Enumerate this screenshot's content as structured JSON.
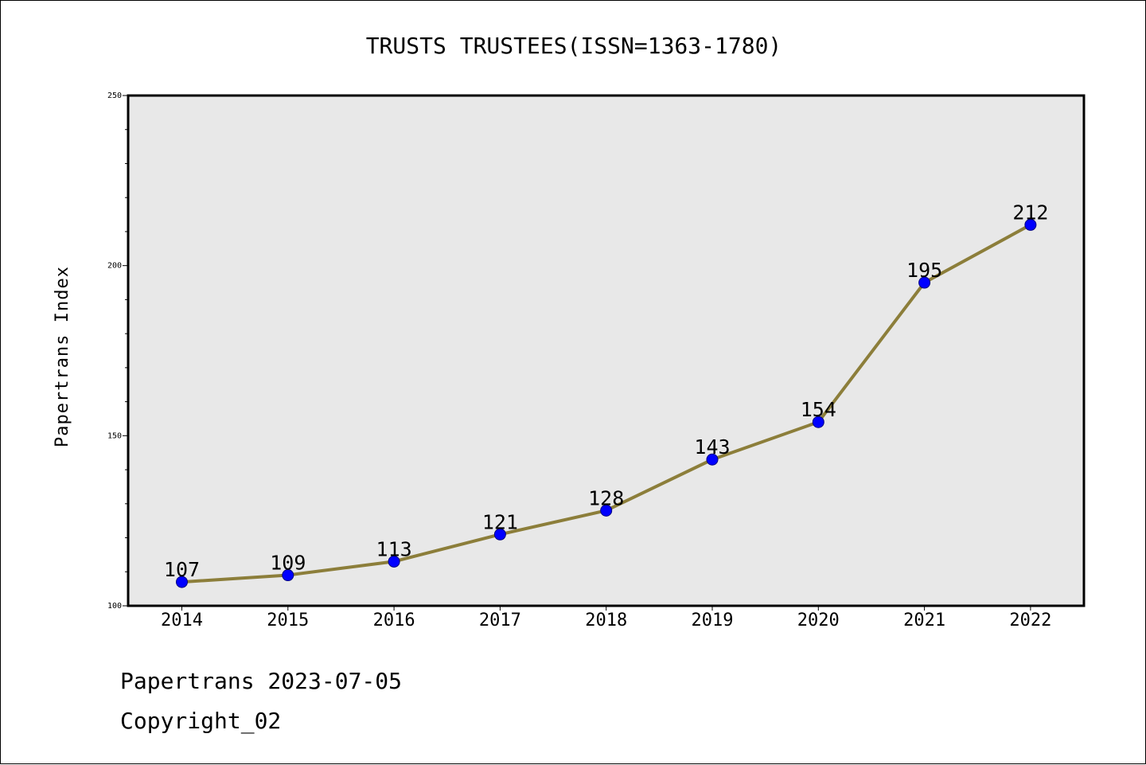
{
  "chart_data": {
    "type": "line",
    "title": "TRUSTS TRUSTEES(ISSN=1363-1780)",
    "ylabel": "Papertrans Index",
    "xlabel": "",
    "x": [
      "2014",
      "2015",
      "2016",
      "2017",
      "2018",
      "2019",
      "2020",
      "2021",
      "2022"
    ],
    "series": [
      {
        "values": [
          107,
          109,
          113,
          121,
          128,
          143,
          154,
          195,
          212
        ]
      }
    ],
    "ylim": [
      100,
      250
    ],
    "yticks": [
      "100",
      "150",
      "200",
      "250"
    ],
    "ytick_values": [
      100,
      150,
      200,
      250
    ],
    "grid": false,
    "legend": "none",
    "colors": {
      "line": "#8c7e3a",
      "marker_fill": "#0000ff",
      "marker_edge": "#000080",
      "plot_background": "#e8e8e8"
    }
  },
  "footer": {
    "line1": "Papertrans 2023-07-05",
    "line2": "Copyright_02"
  }
}
